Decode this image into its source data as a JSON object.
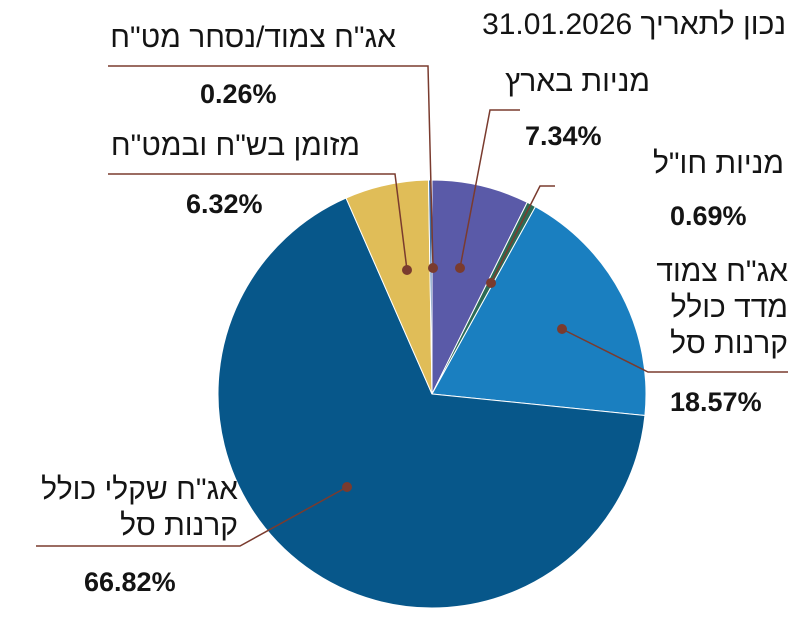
{
  "header": {
    "date_label": "נכון לתאריך 31.01.2026"
  },
  "chart_data": {
    "type": "pie",
    "title": "",
    "start": "top",
    "direction": "clockwise",
    "slices": [
      {
        "label": "מניות בארץ",
        "value": 7.34,
        "value_label": "7.34%",
        "color": "#5a5aa8"
      },
      {
        "label": "מניות חו\"ל",
        "value": 0.69,
        "value_label": "0.69%",
        "color": "#2c6b55"
      },
      {
        "label": "אג\"ח צמוד מדד כולל קרנות סל",
        "value": 18.57,
        "value_label": "18.57%",
        "color": "#1a7fc0"
      },
      {
        "label": "אג\"ח שקלי כולל קרנות סל",
        "value": 66.82,
        "value_label": "66.82%",
        "color": "#07578a"
      },
      {
        "label": "מזומן בש\"ח ובמט\"ח",
        "value": 6.32,
        "value_label": "6.32%",
        "color": "#e0bd58"
      },
      {
        "label": "אג\"ח צמוד/נסחר מט\"ח",
        "value": 0.26,
        "value_label": "0.26%",
        "color": "#3d6da8"
      }
    ],
    "leader_color": "#7a3b2e"
  }
}
